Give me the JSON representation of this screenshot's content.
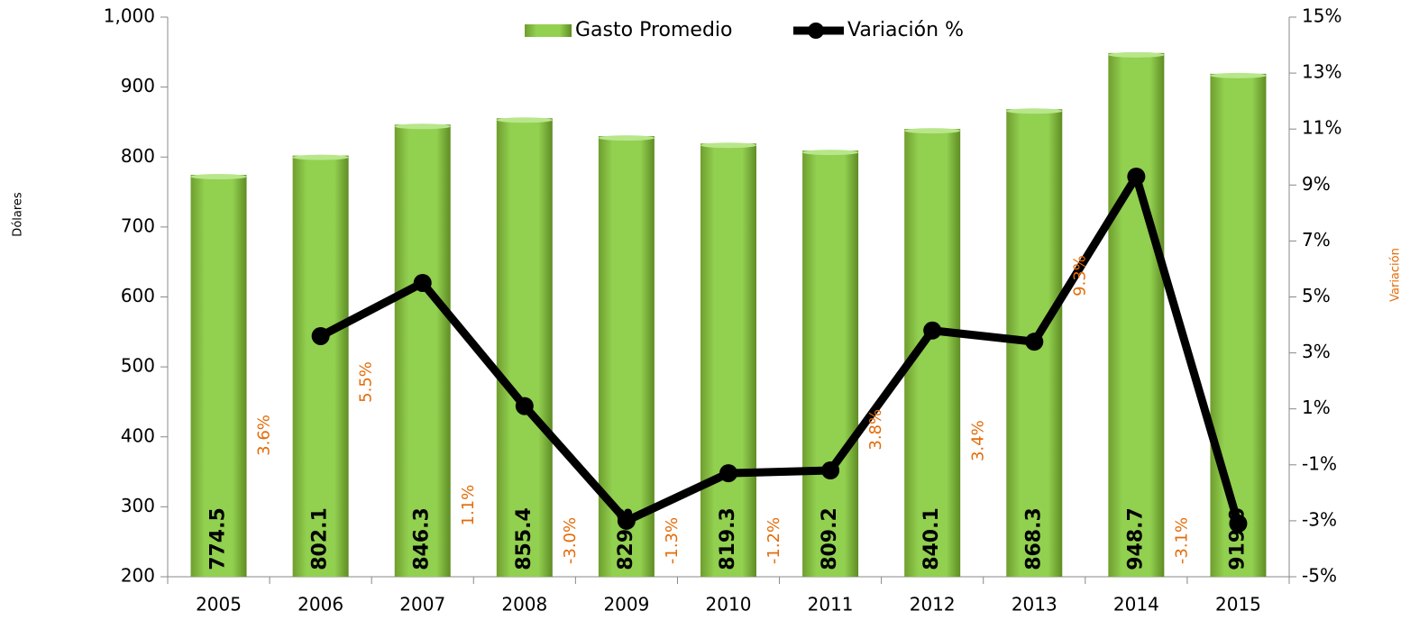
{
  "chart_data": {
    "type": "bar_line",
    "categories": [
      "2005",
      "2006",
      "2007",
      "2008",
      "2009",
      "2010",
      "2011",
      "2012",
      "2013",
      "2014",
      "2015"
    ],
    "series": [
      {
        "name": "Gasto Promedio",
        "type": "bar",
        "color": "#92d050",
        "values": [
          774.5,
          802.1,
          846.3,
          855.4,
          829.8,
          819.3,
          809.2,
          840.1,
          868.3,
          948.7,
          919.0
        ],
        "value_labels": [
          "774.5",
          "802.1",
          "846.3",
          "855.4",
          "829.8",
          "819.3",
          "809.2",
          "840.1",
          "868.3",
          "948.7",
          "919.0"
        ]
      },
      {
        "name": "Variación %",
        "type": "line",
        "color": "#000000",
        "axis": "y2",
        "values": [
          null,
          3.6,
          5.5,
          1.1,
          -3.0,
          -1.3,
          -1.2,
          3.8,
          3.4,
          9.3,
          -3.1
        ],
        "value_labels": [
          null,
          "3.6%",
          "5.5%",
          "1.1%",
          "-3.0%",
          "-1.3%",
          "-1.2%",
          "3.8%",
          "3.4%",
          "9.3%",
          "-3.1%"
        ]
      }
    ],
    "ylabel": "Dólares",
    "y2label": "Variación",
    "ylim": [
      200,
      1000
    ],
    "yticks": [
      200,
      300,
      400,
      500,
      600,
      700,
      800,
      900,
      {
        "value": 1000,
        "label": "1,000"
      }
    ],
    "y2lim": [
      -5,
      15
    ],
    "y2ticks": [
      {
        "value": -5,
        "label": "-5%"
      },
      {
        "value": -3,
        "label": "-3%"
      },
      {
        "value": -1,
        "label": "-1%"
      },
      {
        "value": 1,
        "label": "1%"
      },
      {
        "value": 3,
        "label": "3%"
      },
      {
        "value": 5,
        "label": "5%"
      },
      {
        "value": 7,
        "label": "7%"
      },
      {
        "value": 9,
        "label": "9%"
      },
      {
        "value": 11,
        "label": "11%"
      },
      {
        "value": 13,
        "label": "13%"
      },
      {
        "value": 15,
        "label": "15%"
      }
    ],
    "legend": "top"
  }
}
